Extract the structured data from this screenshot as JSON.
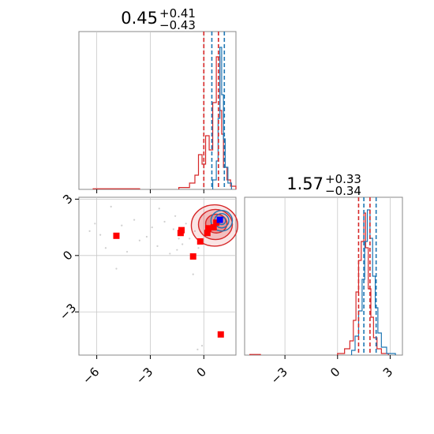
{
  "chart_data": [
    {
      "type": "histogram",
      "panel": "top-left marginal",
      "title": {
        "value": "0.45",
        "plus": "+0.41",
        "minus": "−0.43"
      },
      "xlim": [
        -7.0,
        1.8
      ],
      "grid": true,
      "x_ticks": [
        -6,
        -3,
        0
      ],
      "series": [
        {
          "color": "#d62728",
          "bins": [
            [
              -6.2,
              -5.8,
              0.004
            ],
            [
              -5.8,
              -5.0,
              0.004
            ],
            [
              -5.0,
              -4.2,
              0.004
            ],
            [
              -4.2,
              -3.6,
              0.004
            ],
            [
              -1.4,
              -0.8,
              0.012
            ],
            [
              -0.8,
              -0.5,
              0.04
            ],
            [
              -0.5,
              -0.3,
              0.09
            ],
            [
              -0.3,
              -0.1,
              0.22
            ],
            [
              -0.1,
              0.1,
              0.16
            ],
            [
              0.1,
              0.3,
              0.34
            ],
            [
              0.3,
              0.5,
              0.25
            ],
            [
              0.5,
              0.7,
              0.55
            ],
            [
              0.7,
              0.9,
              0.84
            ],
            [
              0.9,
              1.0,
              0.5
            ],
            [
              1.0,
              1.1,
              0.35
            ],
            [
              1.1,
              1.3,
              0.14
            ],
            [
              1.3,
              1.5,
              0.06
            ],
            [
              1.5,
              1.8,
              0.02
            ]
          ]
        },
        {
          "color": "#1f77b4",
          "bins": [
            [
              0.5,
              0.7,
              0.06
            ],
            [
              0.7,
              0.8,
              0.18
            ],
            [
              0.8,
              0.9,
              0.45
            ],
            [
              0.9,
              1.0,
              0.9
            ],
            [
              1.0,
              1.1,
              0.6
            ],
            [
              1.1,
              1.2,
              0.32
            ],
            [
              1.2,
              1.35,
              0.14
            ],
            [
              1.35,
              1.55,
              0.04
            ]
          ]
        }
      ],
      "quantile_lines": [
        {
          "x": 0.0,
          "color": "#d62728"
        },
        {
          "x": 0.45,
          "color": "#1f77b4"
        },
        {
          "x": 0.82,
          "color": "#d62728"
        },
        {
          "x": 1.15,
          "color": "#1f77b4"
        }
      ]
    },
    {
      "type": "scatter",
      "panel": "bottom-left joint",
      "xlim": [
        -7.0,
        1.8
      ],
      "ylim": [
        -5.3,
        3.1
      ],
      "grid": true,
      "x_ticks": [
        -6,
        -3,
        0
      ],
      "y_ticks": [
        3,
        0,
        -3
      ],
      "x_tick_labels": [
        "−6",
        "−3",
        "0"
      ],
      "y_tick_labels": [
        "3",
        "0",
        "−3"
      ],
      "red_squares": [
        [
          -4.9,
          1.05
        ],
        [
          -1.3,
          1.2
        ],
        [
          -1.25,
          1.35
        ],
        [
          -0.6,
          -0.05
        ],
        [
          -0.2,
          0.75
        ],
        [
          0.2,
          1.2
        ],
        [
          0.25,
          1.45
        ],
        [
          0.55,
          1.5
        ],
        [
          0.7,
          1.75
        ],
        [
          0.95,
          -4.2
        ]
      ],
      "blue_squares": [
        [
          0.9,
          1.9
        ]
      ],
      "faint_points": [
        [
          -6.1,
          1.7
        ],
        [
          -5.8,
          1.1
        ],
        [
          -5.5,
          0.4
        ],
        [
          -4.6,
          1.6
        ],
        [
          -4.3,
          0.2
        ],
        [
          -3.9,
          1.9
        ],
        [
          -3.6,
          0.8
        ],
        [
          -2.9,
          1.5
        ],
        [
          -2.6,
          0.5
        ],
        [
          -2.2,
          1.8
        ],
        [
          -1.9,
          0.1
        ],
        [
          -1.7,
          1.4
        ],
        [
          -1.5,
          0.3
        ],
        [
          -1.2,
          0.6
        ],
        [
          -1.0,
          1.7
        ],
        [
          -0.8,
          0.9
        ],
        [
          -0.5,
          1.3
        ],
        [
          -0.3,
          0.4
        ],
        [
          -4.9,
          -0.7
        ],
        [
          -2.5,
          2.5
        ],
        [
          -1.6,
          2.1
        ],
        [
          -0.6,
          -1.0
        ],
        [
          -0.1,
          -4.8
        ],
        [
          -0.35,
          -5.0
        ],
        [
          -6.4,
          1.3
        ],
        [
          -3.2,
          1.0
        ],
        [
          -5.2,
          2.6
        ],
        [
          -1.4,
          0.9
        ]
      ],
      "contours": [
        {
          "cx": 0.6,
          "cy": 1.6,
          "rx": 1.3,
          "ry": 1.1,
          "color": "#d62728",
          "fill": 0.12
        },
        {
          "cx": 0.65,
          "cy": 1.65,
          "rx": 0.95,
          "ry": 0.8,
          "color": "#d62728",
          "fill": 0.2
        },
        {
          "cx": 0.7,
          "cy": 1.7,
          "rx": 0.6,
          "ry": 0.5,
          "color": "#d62728",
          "fill": 0.3
        },
        {
          "cx": 1.0,
          "cy": 1.85,
          "rx": 0.6,
          "ry": 0.55,
          "color": "#1f77b4",
          "fill": 0
        },
        {
          "cx": 1.0,
          "cy": 1.85,
          "rx": 0.4,
          "ry": 0.38,
          "color": "#1f77b4",
          "fill": 0
        },
        {
          "cx": 1.0,
          "cy": 1.85,
          "rx": 0.22,
          "ry": 0.2,
          "color": "#1f77b4",
          "fill": 0
        }
      ]
    },
    {
      "type": "histogram",
      "panel": "bottom-right marginal",
      "title": {
        "value": "1.57",
        "plus": "+0.33",
        "minus": "−0.34"
      },
      "xlim": [
        -5.3,
        3.7
      ],
      "grid": true,
      "x_ticks": [
        -3,
        0,
        3
      ],
      "x_tick_labels": [
        "−3",
        "0",
        "3"
      ],
      "series": [
        {
          "color": "#d62728",
          "bins": [
            [
              -5.0,
              -4.4,
              0.004
            ],
            [
              0.0,
              0.4,
              0.01
            ],
            [
              0.4,
              0.7,
              0.04
            ],
            [
              0.7,
              0.9,
              0.09
            ],
            [
              0.9,
              1.05,
              0.22
            ],
            [
              1.05,
              1.2,
              0.4
            ],
            [
              1.2,
              1.35,
              0.6
            ],
            [
              1.35,
              1.5,
              0.72
            ],
            [
              1.5,
              1.6,
              0.9
            ],
            [
              1.6,
              1.75,
              0.68
            ],
            [
              1.75,
              1.9,
              0.42
            ],
            [
              1.9,
              2.05,
              0.24
            ],
            [
              2.05,
              2.25,
              0.11
            ],
            [
              2.25,
              2.5,
              0.04
            ],
            [
              2.5,
              2.9,
              0.01
            ]
          ]
        },
        {
          "color": "#1f77b4",
          "bins": [
            [
              0.8,
              1.0,
              0.03
            ],
            [
              1.0,
              1.2,
              0.12
            ],
            [
              1.2,
              1.4,
              0.28
            ],
            [
              1.4,
              1.55,
              0.48
            ],
            [
              1.55,
              1.7,
              0.72
            ],
            [
              1.7,
              1.85,
              0.92
            ],
            [
              1.85,
              2.0,
              0.74
            ],
            [
              2.0,
              2.15,
              0.5
            ],
            [
              2.15,
              2.3,
              0.3
            ],
            [
              2.3,
              2.5,
              0.14
            ],
            [
              2.5,
              2.8,
              0.05
            ],
            [
              2.8,
              3.3,
              0.01
            ]
          ]
        }
      ],
      "quantile_lines": [
        {
          "x": 1.2,
          "color": "#d62728"
        },
        {
          "x": 1.5,
          "color": "#1f77b4"
        },
        {
          "x": 1.85,
          "color": "#d62728"
        },
        {
          "x": 2.2,
          "color": "#1f77b4"
        }
      ]
    }
  ]
}
